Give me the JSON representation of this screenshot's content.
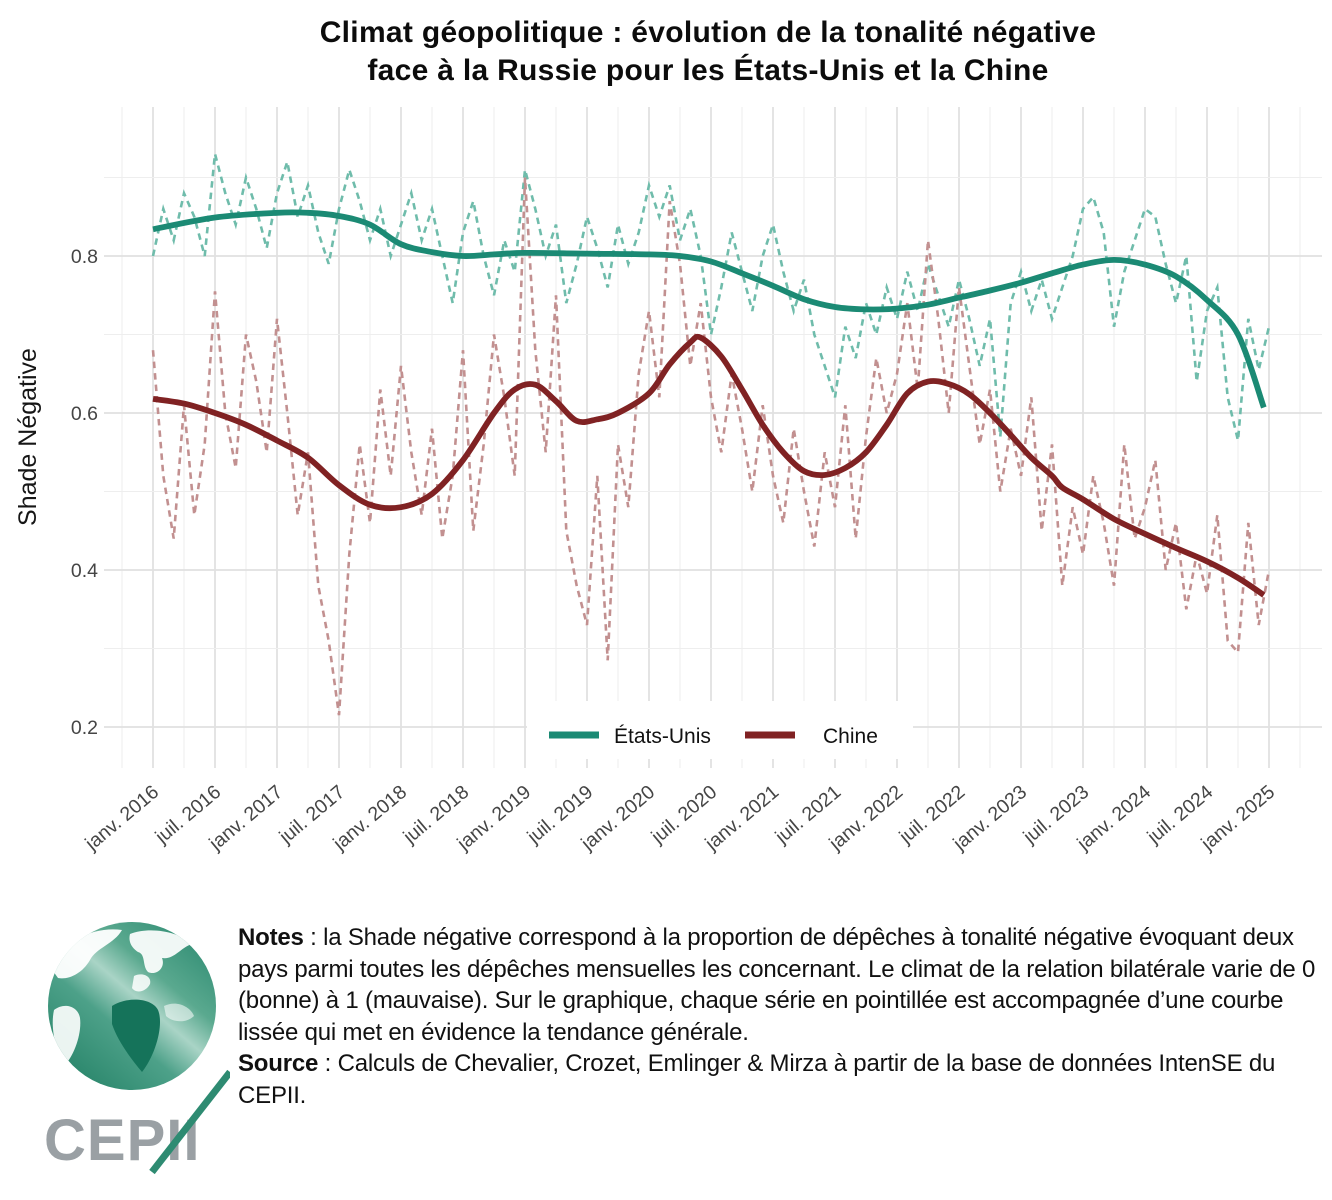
{
  "title": {
    "line1": "Climat géopolitique : évolution de la tonalité négative",
    "line2": "face à la Russie pour les États-Unis et la Chine"
  },
  "axes": {
    "ylabel": "Shade Négative",
    "y_tick_labels": [
      "0.8",
      "0.6",
      "0.4",
      "0.2"
    ],
    "y_tick_values": [
      0.8,
      0.6,
      0.4,
      0.2
    ],
    "y_gridline_values": [
      0.9,
      0.8,
      0.7,
      0.6,
      0.5,
      0.4,
      0.3,
      0.2
    ],
    "x_tick_labels": [
      "janv. 2016",
      "juil. 2016",
      "janv. 2017",
      "juil. 2017",
      "janv. 2018",
      "juil. 2018",
      "janv. 2019",
      "juil. 2019",
      "janv. 2020",
      "juil. 2020",
      "janv. 2021",
      "juil. 2021",
      "janv. 2022",
      "juil. 2022",
      "janv. 2023",
      "juil. 2023",
      "janv. 2024",
      "juil. 2024",
      "janv. 2025"
    ]
  },
  "legend": {
    "items": [
      {
        "label": "États-Unis",
        "color": "#1b8a74"
      },
      {
        "label": "Chine",
        "color": "#802223"
      }
    ]
  },
  "chart_data": {
    "type": "line",
    "title": "Climat géopolitique : évolution de la tonalité négative face à la Russie pour les États-Unis et la Chine",
    "xlabel": "",
    "ylabel": "Shade Négative",
    "x_unit": "index mensuel depuis janv. 2016 (0 = janv. 2016, 108 = janv. 2025)",
    "ylim_visible": [
      0.15,
      0.99
    ],
    "y_axis_ticks": [
      0.2,
      0.4,
      0.6,
      0.8
    ],
    "grid": "on",
    "legend_position": "bottom-center-inside",
    "series": [
      {
        "name": "États-Unis (série mensuelle)",
        "style": "dashed",
        "color": "#6fbcab",
        "x_step_months": 1,
        "values": [
          0.8,
          0.86,
          0.82,
          0.88,
          0.85,
          0.8,
          0.93,
          0.88,
          0.84,
          0.9,
          0.86,
          0.81,
          0.88,
          0.92,
          0.85,
          0.89,
          0.83,
          0.79,
          0.86,
          0.91,
          0.87,
          0.82,
          0.86,
          0.8,
          0.84,
          0.88,
          0.82,
          0.86,
          0.8,
          0.74,
          0.83,
          0.87,
          0.8,
          0.75,
          0.82,
          0.78,
          0.91,
          0.86,
          0.8,
          0.84,
          0.74,
          0.79,
          0.85,
          0.81,
          0.76,
          0.84,
          0.79,
          0.83,
          0.89,
          0.85,
          0.89,
          0.82,
          0.86,
          0.8,
          0.7,
          0.76,
          0.83,
          0.78,
          0.73,
          0.8,
          0.84,
          0.78,
          0.73,
          0.77,
          0.7,
          0.66,
          0.62,
          0.71,
          0.67,
          0.74,
          0.7,
          0.76,
          0.72,
          0.78,
          0.73,
          0.79,
          0.75,
          0.71,
          0.77,
          0.72,
          0.66,
          0.72,
          0.57,
          0.74,
          0.78,
          0.73,
          0.77,
          0.72,
          0.76,
          0.8,
          0.86,
          0.875,
          0.83,
          0.71,
          0.78,
          0.82,
          0.86,
          0.85,
          0.79,
          0.74,
          0.8,
          0.64,
          0.73,
          0.76,
          0.62,
          0.565,
          0.72,
          0.655,
          0.71
        ]
      },
      {
        "name": "Chine (série mensuelle)",
        "style": "dashed",
        "color": "#c29090",
        "x_step_months": 1,
        "values": [
          0.68,
          0.52,
          0.44,
          0.61,
          0.47,
          0.56,
          0.755,
          0.6,
          0.53,
          0.7,
          0.64,
          0.55,
          0.72,
          0.6,
          0.47,
          0.55,
          0.38,
          0.31,
          0.215,
          0.42,
          0.56,
          0.46,
          0.63,
          0.52,
          0.66,
          0.55,
          0.47,
          0.58,
          0.44,
          0.52,
          0.68,
          0.45,
          0.56,
          0.7,
          0.62,
          0.52,
          0.9,
          0.68,
          0.55,
          0.75,
          0.45,
          0.38,
          0.33,
          0.52,
          0.285,
          0.56,
          0.48,
          0.65,
          0.73,
          0.62,
          0.87,
          0.79,
          0.66,
          0.74,
          0.62,
          0.55,
          0.65,
          0.58,
          0.5,
          0.61,
          0.52,
          0.46,
          0.58,
          0.5,
          0.43,
          0.55,
          0.48,
          0.61,
          0.44,
          0.57,
          0.67,
          0.6,
          0.65,
          0.74,
          0.63,
          0.82,
          0.72,
          0.6,
          0.76,
          0.66,
          0.56,
          0.63,
          0.5,
          0.58,
          0.52,
          0.62,
          0.45,
          0.56,
          0.38,
          0.48,
          0.42,
          0.52,
          0.46,
          0.38,
          0.56,
          0.44,
          0.48,
          0.54,
          0.4,
          0.46,
          0.35,
          0.42,
          0.37,
          0.47,
          0.31,
          0.295,
          0.46,
          0.33,
          0.4
        ]
      },
      {
        "name": "États-Unis (tendance lissée)",
        "style": "solid",
        "color": "#1b8a74",
        "points": [
          [
            0,
            0.834
          ],
          [
            6,
            0.849
          ],
          [
            12,
            0.855
          ],
          [
            15,
            0.855
          ],
          [
            18,
            0.851
          ],
          [
            21,
            0.84
          ],
          [
            24,
            0.815
          ],
          [
            27,
            0.805
          ],
          [
            30,
            0.8
          ],
          [
            33,
            0.802
          ],
          [
            36,
            0.804
          ],
          [
            42,
            0.803
          ],
          [
            48,
            0.802
          ],
          [
            51,
            0.8
          ],
          [
            54,
            0.793
          ],
          [
            57,
            0.778
          ],
          [
            60,
            0.762
          ],
          [
            63,
            0.745
          ],
          [
            66,
            0.735
          ],
          [
            69,
            0.732
          ],
          [
            72,
            0.733
          ],
          [
            75,
            0.738
          ],
          [
            78,
            0.747
          ],
          [
            81,
            0.756
          ],
          [
            84,
            0.766
          ],
          [
            87,
            0.778
          ],
          [
            90,
            0.789
          ],
          [
            93,
            0.795
          ],
          [
            96,
            0.789
          ],
          [
            99,
            0.774
          ],
          [
            102,
            0.744
          ],
          [
            105,
            0.7
          ],
          [
            107.5,
            0.607
          ]
        ]
      },
      {
        "name": "Chine (tendance lissée)",
        "style": "solid",
        "color": "#802223",
        "points": [
          [
            0,
            0.618
          ],
          [
            3,
            0.612
          ],
          [
            6,
            0.6
          ],
          [
            9,
            0.585
          ],
          [
            12,
            0.565
          ],
          [
            15,
            0.543
          ],
          [
            18,
            0.508
          ],
          [
            21,
            0.483
          ],
          [
            24,
            0.48
          ],
          [
            27,
            0.497
          ],
          [
            30,
            0.54
          ],
          [
            33,
            0.6
          ],
          [
            35,
            0.63
          ],
          [
            37,
            0.636
          ],
          [
            39,
            0.615
          ],
          [
            41,
            0.59
          ],
          [
            43,
            0.592
          ],
          [
            45,
            0.6
          ],
          [
            48,
            0.625
          ],
          [
            50,
            0.662
          ],
          [
            52,
            0.69
          ],
          [
            53,
            0.696
          ],
          [
            55,
            0.672
          ],
          [
            57,
            0.63
          ],
          [
            59,
            0.585
          ],
          [
            61,
            0.55
          ],
          [
            63,
            0.526
          ],
          [
            65,
            0.521
          ],
          [
            67,
            0.53
          ],
          [
            69,
            0.55
          ],
          [
            71,
            0.585
          ],
          [
            73,
            0.625
          ],
          [
            75,
            0.64
          ],
          [
            77,
            0.637
          ],
          [
            79,
            0.624
          ],
          [
            81,
            0.6
          ],
          [
            83,
            0.572
          ],
          [
            85,
            0.543
          ],
          [
            87,
            0.52
          ],
          [
            88,
            0.505
          ],
          [
            90,
            0.49
          ],
          [
            93,
            0.465
          ],
          [
            96,
            0.446
          ],
          [
            99,
            0.428
          ],
          [
            102,
            0.411
          ],
          [
            105,
            0.39
          ],
          [
            107.5,
            0.368
          ]
        ]
      }
    ]
  },
  "notes": {
    "label": "Notes",
    "text": " : la Shade négative correspond à la proportion de dépêches à tonalité négative évoquant deux pays parmi toutes les dépêches mensuelles les concernant. Le climat de la relation bilatérale varie de 0 (bonne) à 1 (mauvaise). Sur le graphique, chaque série en pointillée est accompagnée d’une courbe lissée qui met en évidence la tendance générale."
  },
  "source": {
    "label": "Source",
    "text": " : Calculs de Chevalier, Crozet, Emlinger & Mirza à partir de la base de données IntenSE du CEPII."
  },
  "logo": {
    "text": "CEPII"
  },
  "colors": {
    "us_trend": "#1b8a74",
    "us_monthly": "#6fbcab",
    "chine_trend": "#802223",
    "chine_monthly": "#c29090",
    "grid_major": "#e0e0e0",
    "grid_minor": "#eeeeee",
    "tick_text": "#454545",
    "logo_green": "#2e8b72",
    "logo_gray": "#9aa0a4"
  }
}
